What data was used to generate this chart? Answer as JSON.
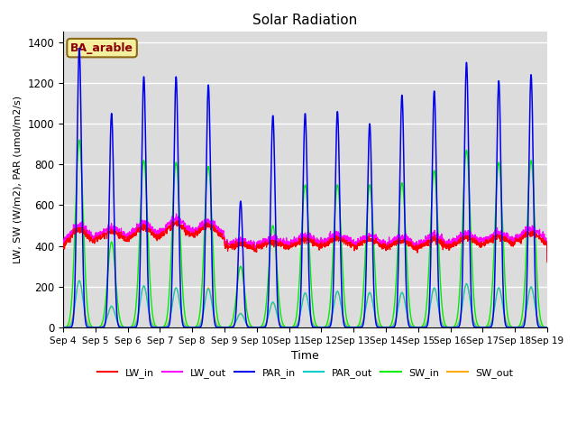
{
  "title": "Solar Radiation",
  "ylabel": "LW, SW (W/m2), PAR (umol/m2/s)",
  "xlabel": "Time",
  "annotation": "BA_arable",
  "ylim": [
    0,
    1450
  ],
  "background_color": "#dcdcdc",
  "line_colors": {
    "LW_in": "#ff0000",
    "LW_out": "#ff00ff",
    "PAR_in": "#0000ee",
    "PAR_out": "#00cccc",
    "SW_in": "#00ee00",
    "SW_out": "#ffaa00"
  },
  "n_days": 15,
  "start_day": 4,
  "day_peaks_PAR": [
    1370,
    1050,
    1230,
    1230,
    1190,
    620,
    1040,
    1050,
    1060,
    1000,
    1140,
    1160,
    1300,
    1210,
    1240
  ],
  "day_peaks_SW_in": [
    920,
    420,
    820,
    810,
    790,
    300,
    500,
    700,
    700,
    700,
    710,
    770,
    870,
    810,
    820
  ],
  "day_peaks_SW_out": [
    230,
    100,
    200,
    195,
    195,
    70,
    120,
    165,
    175,
    170,
    170,
    190,
    210,
    195,
    195
  ],
  "day_peaks_PAR_out": [
    230,
    105,
    205,
    195,
    190,
    68,
    125,
    170,
    178,
    172,
    172,
    195,
    215,
    195,
    200
  ],
  "lw_in_day": [
    370,
    390,
    390,
    400,
    400,
    360,
    370,
    370,
    370,
    360,
    355,
    360,
    370,
    375,
    390
  ],
  "lw_in_peak": [
    480,
    470,
    490,
    510,
    500,
    410,
    420,
    430,
    435,
    430,
    425,
    430,
    440,
    445,
    460
  ]
}
